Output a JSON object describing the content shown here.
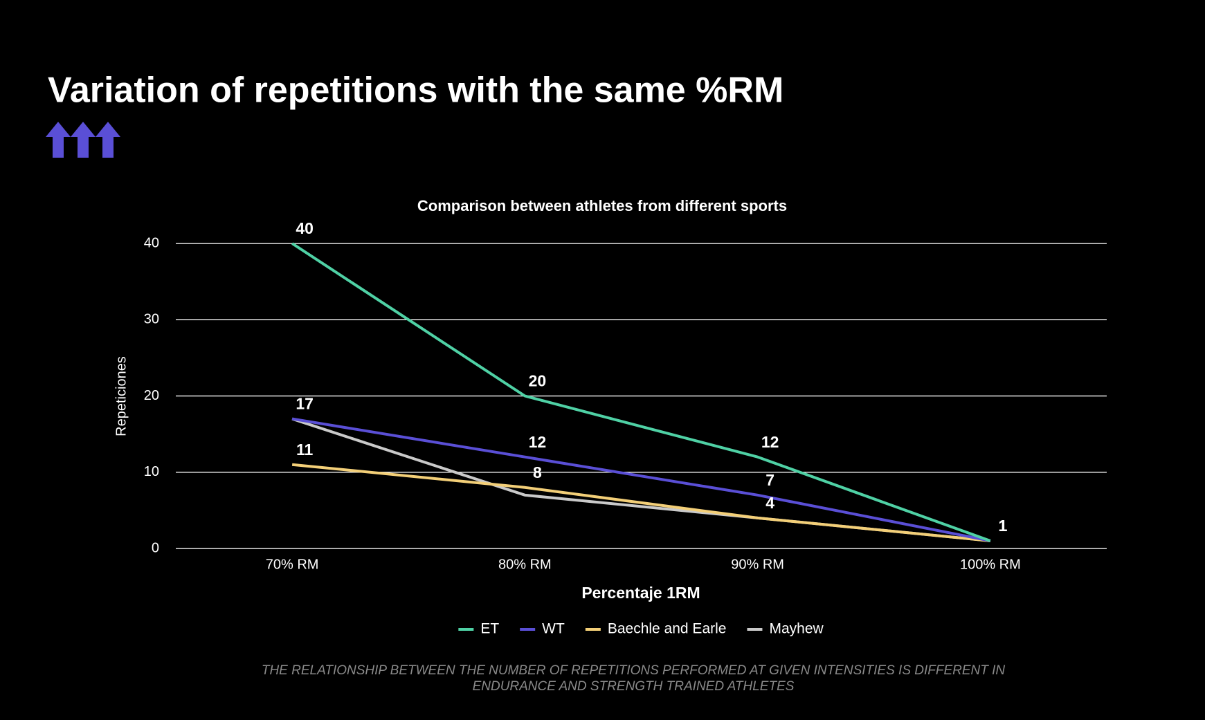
{
  "chart_data": {
    "type": "line",
    "page_title": "Variation of repetitions with the same %RM",
    "title": "Comparison between athletes from different sports",
    "x_label": "Percentaje 1RM",
    "y_label": "Repeticiones",
    "categories": [
      "70% RM",
      "80% RM",
      "90% RM",
      "100% RM"
    ],
    "series": [
      {
        "name": "ET",
        "color": "#4fd1a5",
        "values": [
          40,
          20,
          12,
          1
        ],
        "data_labels": true
      },
      {
        "name": "WT",
        "color": "#5a4fd6",
        "values": [
          17,
          12,
          7,
          1
        ],
        "data_labels": true
      },
      {
        "name": "Baechle and Earle",
        "color": "#f3cf78",
        "values": [
          11,
          8,
          4,
          1
        ],
        "data_labels": true
      },
      {
        "name": "Mayhew",
        "color": "#c9c9c9",
        "values": [
          17,
          7,
          4,
          1
        ],
        "data_labels": false
      }
    ],
    "ylim": [
      0,
      40
    ],
    "yticks": [
      0,
      10,
      20,
      30,
      40
    ],
    "grid": true,
    "legend": "bottom",
    "footnote": "THE RELATIONSHIP BETWEEN THE NUMBER OF REPETITIONS PERFORMED AT GIVEN INTENSITIES IS DIFFERENT IN ENDURANCE AND STRENGTH TRAINED ATHLETES"
  }
}
